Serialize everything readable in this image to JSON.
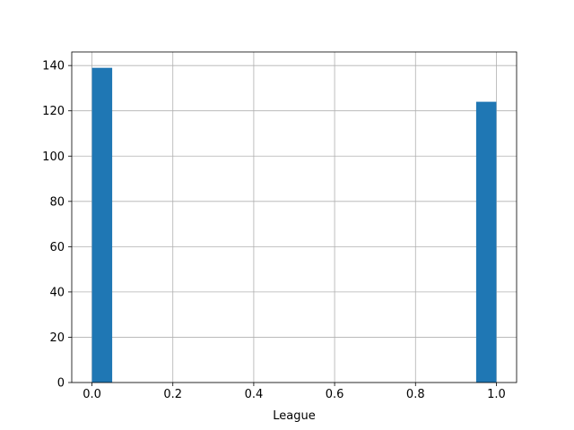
{
  "chart_data": {
    "type": "bar",
    "title": "",
    "xlabel": "League",
    "ylabel": "",
    "xlim": [
      -0.05,
      1.05
    ],
    "ylim": [
      0,
      146
    ],
    "bin_edges": [
      0.0,
      0.05,
      0.1,
      0.15,
      0.2,
      0.25,
      0.3,
      0.35,
      0.4,
      0.45,
      0.5,
      0.55,
      0.6,
      0.65,
      0.7,
      0.75,
      0.8,
      0.85,
      0.9,
      0.95,
      1.0
    ],
    "values": [
      139,
      0,
      0,
      0,
      0,
      0,
      0,
      0,
      0,
      0,
      0,
      0,
      0,
      0,
      0,
      0,
      0,
      0,
      0,
      124
    ],
    "xticks": [
      0.0,
      0.2,
      0.4,
      0.6,
      0.8,
      1.0
    ],
    "xtick_labels": [
      "0.0",
      "0.2",
      "0.4",
      "0.6",
      "0.8",
      "1.0"
    ],
    "yticks": [
      0,
      20,
      40,
      60,
      80,
      100,
      120,
      140
    ],
    "ytick_labels": [
      "0",
      "20",
      "40",
      "60",
      "80",
      "100",
      "120",
      "140"
    ],
    "grid": true,
    "colors": {
      "bar": "#1f77b4",
      "grid": "#b0b0b0",
      "axis": "#000000"
    }
  }
}
